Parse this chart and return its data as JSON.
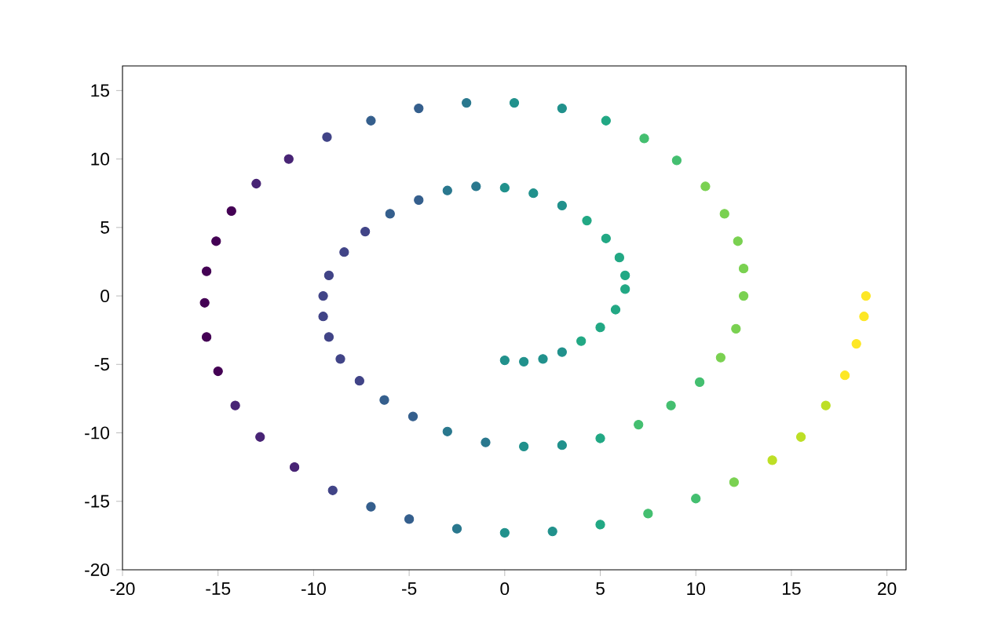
{
  "chart_data": {
    "type": "scatter",
    "x": [
      0,
      1,
      2,
      3,
      4,
      5,
      5.8,
      6.3,
      6.3,
      6,
      5.3,
      4.3,
      3,
      1.5,
      0,
      -1.5,
      -3,
      -4.5,
      -6,
      -7.3,
      -8.4,
      -9.2,
      -9.5,
      -9.5,
      -9.2,
      -8.6,
      -7.6,
      -6.3,
      -4.8,
      -3,
      -1,
      1,
      3,
      5,
      7,
      8.7,
      10.2,
      11.3,
      12.1,
      12.5,
      12.5,
      12.2,
      11.5,
      10.5,
      9,
      7.3,
      5.3,
      3,
      0.5,
      -2,
      -4.5,
      -7,
      -9.3,
      -11.3,
      -13,
      -14.3,
      -15.1,
      -15.6,
      -15.7,
      -15.6,
      -15,
      -14.1,
      -12.8,
      -11,
      -9,
      -7,
      -5,
      -2.5,
      0,
      2.5,
      5,
      7.5,
      10,
      12,
      14,
      15.5,
      16.8,
      17.8,
      18.4,
      18.8,
      18.9
    ],
    "values": [
      -4.7,
      -4.8,
      -4.6,
      -4.1,
      -3.3,
      -2.3,
      -1,
      0.5,
      1.5,
      2.8,
      4.2,
      5.5,
      6.6,
      7.5,
      7.9,
      8,
      7.7,
      7,
      6,
      4.7,
      3.2,
      1.5,
      0,
      -1.5,
      -3,
      -4.6,
      -6.2,
      -7.6,
      -8.8,
      -9.9,
      -10.7,
      -11,
      -10.9,
      -10.4,
      -9.4,
      -8,
      -6.3,
      -4.5,
      -2.4,
      0,
      2,
      4,
      6,
      8,
      9.9,
      11.5,
      12.8,
      13.7,
      14.1,
      14.1,
      13.7,
      12.8,
      11.6,
      10,
      8.2,
      6.2,
      4,
      1.8,
      -0.5,
      -3,
      -5.5,
      -8,
      -10.3,
      -12.5,
      -14.2,
      -15.4,
      -16.3,
      -17,
      -17.3,
      -17.2,
      -16.7,
      -15.9,
      -14.8,
      -13.6,
      -12,
      -10.3,
      -8,
      -5.8,
      -3.5,
      -1.5,
      0
    ],
    "colors": [
      "#21918c",
      "#21918c",
      "#21918c",
      "#21918c",
      "#22a884",
      "#22a884",
      "#22a884",
      "#22a884",
      "#22a884",
      "#22a884",
      "#22a884",
      "#22a884",
      "#21918c",
      "#21918c",
      "#21918c",
      "#2a788e",
      "#2a788e",
      "#355f8d",
      "#355f8d",
      "#414487",
      "#414487",
      "#414487",
      "#414487",
      "#414487",
      "#414487",
      "#414487",
      "#414487",
      "#355f8d",
      "#355f8d",
      "#2a788e",
      "#2a788e",
      "#21918c",
      "#21918c",
      "#22a884",
      "#44bf70",
      "#44bf70",
      "#44bf70",
      "#7ad151",
      "#7ad151",
      "#7ad151",
      "#7ad151",
      "#7ad151",
      "#7ad151",
      "#7ad151",
      "#44bf70",
      "#44bf70",
      "#22a884",
      "#21918c",
      "#21918c",
      "#2a788e",
      "#355f8d",
      "#355f8d",
      "#414487",
      "#482475",
      "#482475",
      "#440154",
      "#440154",
      "#440154",
      "#440154",
      "#440154",
      "#440154",
      "#482475",
      "#482475",
      "#482475",
      "#414487",
      "#355f8d",
      "#355f8d",
      "#2a788e",
      "#21918c",
      "#21918c",
      "#22a884",
      "#44bf70",
      "#44bf70",
      "#7ad151",
      "#bddf26",
      "#bddf26",
      "#bddf26",
      "#fde725",
      "#fde725",
      "#fde725",
      "#fde725"
    ],
    "xlim": [
      -20,
      21
    ],
    "ylim": [
      -20,
      16.8
    ],
    "xticks": [
      -20,
      -15,
      -10,
      -5,
      0,
      5,
      10,
      15,
      20
    ],
    "yticks": [
      -20,
      -15,
      -10,
      -5,
      0,
      5,
      10,
      15
    ],
    "grid": false
  }
}
